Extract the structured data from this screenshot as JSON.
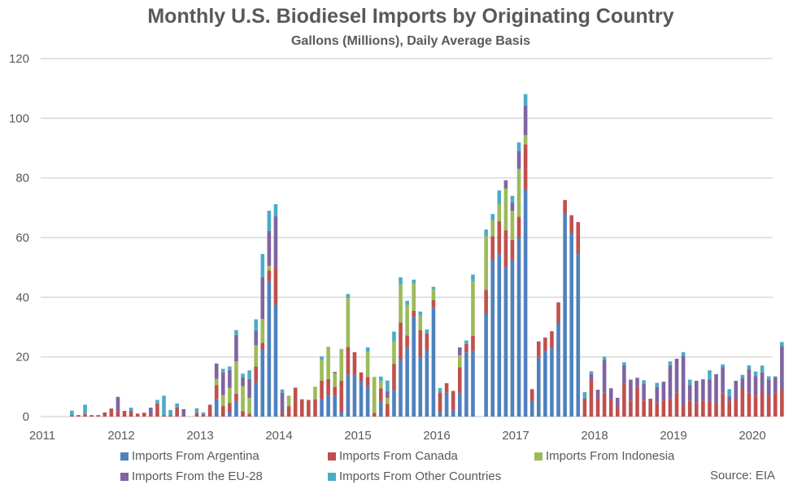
{
  "chart_data": {
    "type": "bar",
    "stacked": true,
    "title": "Monthly U.S. Biodiesel Imports by Originating Country",
    "subtitle": "Gallons (Millions), Daily Average Basis",
    "xlabel": "",
    "ylabel": "",
    "ylim": [
      0,
      120
    ],
    "yticks": [
      "0",
      "20",
      "40",
      "60",
      "80",
      "100",
      "120"
    ],
    "xticks": [
      "2011",
      "2012",
      "2013",
      "2014",
      "2015",
      "2016",
      "2017",
      "2018",
      "2019",
      "2020"
    ],
    "grid": true,
    "legend_position": "bottom",
    "source": "Source: EIA",
    "first_month": "2011-05",
    "series": [
      {
        "name": "Imports From Argentina",
        "color": "#4f81bd"
      },
      {
        "name": "Imports From Canada",
        "color": "#c0504d"
      },
      {
        "name": "Imports From Indonesia",
        "color": "#9bbb59"
      },
      {
        "name": "Imports From the EU-28",
        "color": "#8064a2"
      },
      {
        "name": "Imports From Other Countries",
        "color": "#4bacc6"
      }
    ],
    "monthly_values": [
      [
        0,
        0.5,
        0,
        0,
        1.5
      ],
      [
        0,
        0.5,
        0,
        0,
        0
      ],
      [
        0,
        0.8,
        0,
        0,
        3.2
      ],
      [
        0,
        0.5,
        0,
        0,
        0
      ],
      [
        0,
        0.5,
        0,
        0,
        0
      ],
      [
        0,
        1.4,
        0,
        0,
        0
      ],
      [
        0,
        2.7,
        0,
        0,
        0
      ],
      [
        0,
        1.6,
        0,
        5.0,
        0
      ],
      [
        0,
        1.9,
        0,
        0,
        0
      ],
      [
        0,
        1.9,
        0,
        0,
        1.1
      ],
      [
        0,
        1.0,
        0,
        0,
        0
      ],
      [
        0,
        1.3,
        0,
        0,
        0
      ],
      [
        0,
        0.7,
        0,
        2.3,
        0
      ],
      [
        0,
        4.4,
        0,
        0,
        1.2
      ],
      [
        0,
        0.5,
        0,
        0,
        6.5
      ],
      [
        0,
        0.5,
        0,
        0,
        1.7
      ],
      [
        0,
        3.0,
        0,
        0,
        1.4
      ],
      [
        0,
        0,
        0,
        2.5,
        0
      ],
      [
        0,
        0,
        0,
        0,
        0
      ],
      [
        0,
        1.3,
        0,
        0,
        1.5
      ],
      [
        0,
        0.7,
        0,
        0,
        0.7
      ],
      [
        0,
        3.7,
        0,
        0.3,
        0
      ],
      [
        5.8,
        4.7,
        2.1,
        5.2,
        0
      ],
      [
        0,
        3.6,
        3.6,
        7.6,
        1.2
      ],
      [
        1.5,
        3.1,
        5.0,
        6.0,
        1.2
      ],
      [
        5.2,
        2.5,
        10.8,
        8.8,
        1.7
      ],
      [
        0,
        1.8,
        8.4,
        3.0,
        1.2
      ],
      [
        0,
        1.0,
        5.3,
        6.3,
        2.9
      ],
      [
        11.5,
        5.3,
        7.1,
        4.9,
        3.8
      ],
      [
        22.5,
        2.2,
        8.0,
        14.0,
        7.8
      ],
      [
        45.5,
        3.5,
        1.5,
        11.7,
        6.8
      ],
      [
        37.5,
        12.7,
        0,
        17.0,
        4.0
      ],
      [
        0,
        1.2,
        0,
        6.7,
        1.2
      ],
      [
        0,
        3.5,
        3.5,
        0,
        0
      ],
      [
        0,
        9.7,
        0,
        0,
        0
      ],
      [
        0,
        5.8,
        0,
        0,
        0
      ],
      [
        0,
        5.6,
        0,
        0,
        0
      ],
      [
        0,
        5.8,
        4.2,
        0,
        0
      ],
      [
        5.8,
        6.2,
        7.0,
        0,
        1.2
      ],
      [
        7.2,
        5.4,
        10.8,
        0,
        0
      ],
      [
        7.0,
        3.0,
        4.6,
        0.4,
        0
      ],
      [
        1.5,
        10.5,
        10.7,
        0,
        0
      ],
      [
        14.0,
        9.3,
        16.5,
        0,
        1.3
      ],
      [
        14.0,
        7.6,
        0,
        0,
        0
      ],
      [
        12.0,
        2.8,
        0,
        0,
        0
      ],
      [
        10.0,
        3.3,
        8.4,
        0,
        1.5
      ],
      [
        0,
        1.3,
        12.0,
        0,
        0
      ],
      [
        5.2,
        4.3,
        2.5,
        0,
        1.4
      ],
      [
        0,
        4.3,
        2.0,
        2.2,
        3.6
      ],
      [
        9.0,
        8.7,
        7.5,
        0,
        3.3
      ],
      [
        19.0,
        12.5,
        12.8,
        0,
        2.4
      ],
      [
        23.0,
        4.2,
        10.3,
        0,
        1.3
      ],
      [
        33.5,
        2.0,
        9.0,
        0,
        1.4
      ],
      [
        20.0,
        9.0,
        4.9,
        0,
        1.3
      ],
      [
        22.5,
        5.4,
        0,
        0,
        1.3
      ],
      [
        36.5,
        2.5,
        3.7,
        0,
        0.8
      ],
      [
        1.5,
        6.6,
        0,
        0,
        1.5
      ],
      [
        8.0,
        3.2,
        0,
        0,
        0
      ],
      [
        2.0,
        6.6,
        0,
        0,
        0
      ],
      [
        8.0,
        8.5,
        4.0,
        2.7,
        0
      ],
      [
        21.5,
        2.8,
        0,
        0,
        1.2
      ],
      [
        22.0,
        5.1,
        18.3,
        0,
        2.2
      ],
      [
        0,
        0,
        0,
        0,
        0
      ],
      [
        34.5,
        8.0,
        18.0,
        0,
        2.2
      ],
      [
        52.5,
        8.0,
        5.2,
        0,
        2.2
      ],
      [
        54.5,
        11.0,
        5.7,
        0,
        4.6
      ],
      [
        50.0,
        12.5,
        14.0,
        2.7,
        0
      ],
      [
        52.5,
        6.7,
        9.8,
        2.7,
        2.3
      ],
      [
        60.0,
        7.0,
        16.0,
        6.0,
        2.9
      ],
      [
        76.0,
        15.3,
        3.0,
        10.0,
        3.8
      ],
      [
        5.2,
        4.0,
        0,
        0,
        0
      ],
      [
        20.0,
        5.2,
        0,
        0,
        0
      ],
      [
        22.0,
        4.5,
        0,
        0,
        0
      ],
      [
        23.0,
        5.6,
        0,
        0,
        0
      ],
      [
        31.5,
        6.8,
        0,
        0,
        0
      ],
      [
        68.0,
        4.6,
        0,
        0,
        0
      ],
      [
        61.5,
        6.0,
        0,
        0,
        0
      ],
      [
        54.5,
        10.7,
        0,
        0,
        0
      ],
      [
        0,
        6.0,
        0,
        0,
        2.2
      ],
      [
        0,
        12.5,
        0,
        1.8,
        0.9
      ],
      [
        0,
        6.0,
        0,
        3.0,
        0
      ],
      [
        0,
        8.0,
        0,
        11.0,
        1.1
      ],
      [
        0,
        5.5,
        0,
        4.0,
        0
      ],
      [
        0,
        3.0,
        0,
        3.3,
        0
      ],
      [
        0,
        11.0,
        0,
        6.2,
        1.0
      ],
      [
        0,
        5.4,
        0,
        7.0,
        0
      ],
      [
        0,
        10.0,
        0,
        3.0,
        0
      ],
      [
        0,
        5.4,
        0,
        5.5,
        1.3
      ],
      [
        0,
        6.0,
        0,
        0,
        0
      ],
      [
        0,
        4.6,
        0,
        5.3,
        1.4
      ],
      [
        0,
        5.4,
        0,
        6.3,
        0
      ],
      [
        0,
        5.9,
        0,
        11.3,
        1.3
      ],
      [
        0,
        8.0,
        0,
        11.4,
        0
      ],
      [
        0,
        3.7,
        0,
        16.6,
        1.3
      ],
      [
        0,
        5.4,
        0,
        5.2,
        1.8
      ],
      [
        0,
        4.6,
        0,
        7.4,
        0
      ],
      [
        0,
        5.4,
        0,
        7.1,
        0
      ],
      [
        0,
        5.0,
        0,
        7.5,
        3.0
      ],
      [
        0,
        4.6,
        0,
        9.6,
        0
      ],
      [
        0,
        8.0,
        0,
        8.5,
        1.0
      ],
      [
        0,
        5.0,
        0,
        1.8,
        2.4
      ],
      [
        0,
        6.0,
        0,
        6.0,
        0
      ],
      [
        0,
        9.0,
        0,
        4.0,
        1.0
      ],
      [
        0,
        8.0,
        0,
        8.0,
        1.2
      ],
      [
        0,
        7.0,
        0,
        6.6,
        1.5
      ],
      [
        0,
        8.2,
        0,
        6.6,
        2.3
      ],
      [
        0,
        6.8,
        0,
        5.7,
        1.0
      ],
      [
        0,
        7.7,
        0,
        5.5,
        0.3
      ],
      [
        0,
        9.0,
        0,
        14.6,
        1.4
      ]
    ]
  }
}
